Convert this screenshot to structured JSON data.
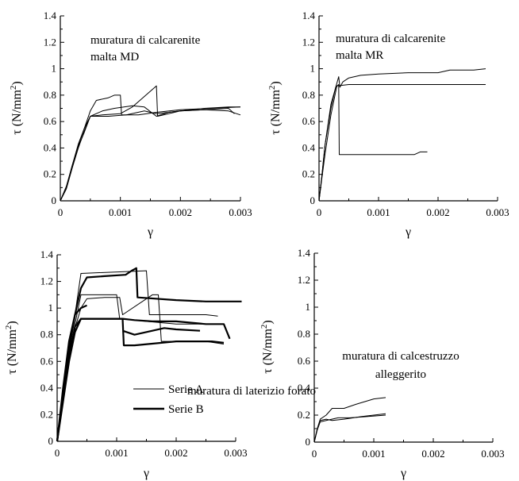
{
  "chart_data": [
    {
      "type": "line",
      "title": "",
      "annotation": [
        "muratura di calcarenite",
        "malta MD"
      ],
      "xlabel": "γ",
      "ylabel": "τ (N/mm",
      "ylabel_sup": "2",
      "ylabel_close": ")",
      "xlim": [
        0,
        0.003
      ],
      "ylim": [
        0,
        1.4
      ],
      "xticks": [
        0,
        0.001,
        0.002,
        0.003
      ],
      "xtick_labels": [
        "0",
        "0.001",
        "0.002",
        "0.003"
      ],
      "yticks": [
        0,
        0.2,
        0.4,
        0.6,
        0.8,
        1,
        1.2,
        1.4
      ],
      "ytick_labels": [
        "0",
        "0.2",
        "0.4",
        "0.6",
        "0.8",
        "1",
        "1.2",
        "1.4"
      ],
      "series": [
        {
          "weight": "thin",
          "points": [
            [
              0,
              0
            ],
            [
              0.0001,
              0.1
            ],
            [
              0.0002,
              0.27
            ],
            [
              0.0003,
              0.42
            ],
            [
              0.0004,
              0.55
            ],
            [
              0.0005,
              0.64
            ],
            [
              0.0008,
              0.64
            ],
            [
              0.0011,
              0.65
            ],
            [
              0.0014,
              0.68
            ],
            [
              0.0016,
              0.66
            ],
            [
              0.002,
              0.68
            ],
            [
              0.0024,
              0.69
            ],
            [
              0.0028,
              0.7
            ],
            [
              0.0029,
              0.66
            ]
          ]
        },
        {
          "weight": "thin",
          "points": [
            [
              0,
              0
            ],
            [
              0.0001,
              0.09
            ],
            [
              0.0002,
              0.25
            ],
            [
              0.0003,
              0.4
            ],
            [
              0.0004,
              0.53
            ],
            [
              0.0005,
              0.64
            ],
            [
              0.0007,
              0.68
            ],
            [
              0.0009,
              0.7
            ],
            [
              0.0012,
              0.72
            ],
            [
              0.0014,
              0.71
            ],
            [
              0.0016,
              0.64
            ],
            [
              0.0018,
              0.67
            ],
            [
              0.002,
              0.68
            ],
            [
              0.0024,
              0.69
            ],
            [
              0.0028,
              0.68
            ],
            [
              0.003,
              0.65
            ]
          ]
        },
        {
          "weight": "thin",
          "points": [
            [
              0,
              0
            ],
            [
              0.0001,
              0.1
            ],
            [
              0.0002,
              0.26
            ],
            [
              0.0003,
              0.41
            ],
            [
              0.0004,
              0.52
            ],
            [
              0.0005,
              0.64
            ],
            [
              0.0007,
              0.65
            ],
            [
              0.001,
              0.66
            ],
            [
              0.0012,
              0.71
            ],
            [
              0.0016,
              0.87
            ],
            [
              0.00162,
              0.64
            ],
            [
              0.002,
              0.68
            ],
            [
              0.0024,
              0.7
            ],
            [
              0.0028,
              0.71
            ],
            [
              0.003,
              0.71
            ]
          ]
        },
        {
          "weight": "thin",
          "points": [
            [
              0,
              0
            ],
            [
              0.0001,
              0.11
            ],
            [
              0.0002,
              0.27
            ],
            [
              0.0003,
              0.43
            ],
            [
              0.0004,
              0.55
            ],
            [
              0.0005,
              0.68
            ],
            [
              0.0006,
              0.76
            ],
            [
              0.0008,
              0.78
            ],
            [
              0.0009,
              0.8
            ],
            [
              0.001,
              0.8
            ],
            [
              0.00102,
              0.65
            ],
            [
              0.0013,
              0.65
            ],
            [
              0.0016,
              0.67
            ],
            [
              0.002,
              0.69
            ],
            [
              0.0025,
              0.7
            ],
            [
              0.003,
              0.71
            ]
          ]
        }
      ]
    },
    {
      "type": "line",
      "title": "",
      "annotation": [
        "muratura di calcarenite",
        "malta MR"
      ],
      "xlabel": "γ",
      "ylabel": "τ (N/mm",
      "ylabel_sup": "2",
      "ylabel_close": ")",
      "xlim": [
        0,
        0.003
      ],
      "ylim": [
        0,
        1.4
      ],
      "xticks": [
        0,
        0.001,
        0.002,
        0.003
      ],
      "xtick_labels": [
        "0",
        "0.001",
        "0.002",
        "0.003"
      ],
      "yticks": [
        0,
        0.2,
        0.4,
        0.6,
        0.8,
        1,
        1.2,
        1.4
      ],
      "ytick_labels": [
        "0",
        "0.2",
        "0.4",
        "0.6",
        "0.8",
        "1",
        "1.2",
        "1.4"
      ],
      "series": [
        {
          "weight": "thin",
          "points": [
            [
              0,
              0
            ],
            [
              5e-05,
              0.2
            ],
            [
              0.0001,
              0.42
            ],
            [
              0.0002,
              0.7
            ],
            [
              0.00028,
              0.86
            ],
            [
              0.00033,
              0.88
            ],
            [
              0.00034,
              0.35
            ],
            [
              0.0008,
              0.35
            ],
            [
              0.0016,
              0.35
            ],
            [
              0.0017,
              0.37
            ],
            [
              0.00182,
              0.37
            ]
          ]
        },
        {
          "weight": "thin",
          "points": [
            [
              0,
              0
            ],
            [
              5e-05,
              0.18
            ],
            [
              0.0001,
              0.35
            ],
            [
              0.0002,
              0.65
            ],
            [
              0.0003,
              0.87
            ],
            [
              0.0005,
              0.88
            ],
            [
              0.001,
              0.88
            ],
            [
              0.002,
              0.88
            ],
            [
              0.0028,
              0.88
            ]
          ]
        },
        {
          "weight": "thin",
          "points": [
            [
              0,
              0
            ],
            [
              5e-05,
              0.2
            ],
            [
              0.0001,
              0.42
            ],
            [
              0.0002,
              0.73
            ],
            [
              0.00033,
              0.94
            ],
            [
              0.00035,
              0.86
            ],
            [
              0.0004,
              0.9
            ],
            [
              0.0005,
              0.93
            ],
            [
              0.0007,
              0.95
            ],
            [
              0.001,
              0.96
            ],
            [
              0.0015,
              0.97
            ],
            [
              0.002,
              0.97
            ],
            [
              0.0022,
              0.99
            ],
            [
              0.0026,
              0.99
            ],
            [
              0.0028,
              1.0
            ]
          ]
        }
      ]
    },
    {
      "type": "line",
      "title": "",
      "annotation": [
        "muratura di laterizio forato"
      ],
      "legend": {
        "items": [
          {
            "name": "Serie A",
            "weight": "thin"
          },
          {
            "name": "Serie B",
            "weight": "thick"
          }
        ]
      },
      "xlabel": "γ",
      "ylabel": "τ (N/mm",
      "ylabel_sup": "2",
      "ylabel_close": ")",
      "xlim": [
        0,
        0.003
      ],
      "ylim": [
        0,
        1.4
      ],
      "xticks": [
        0,
        0.001,
        0.002,
        0.003
      ],
      "xtick_labels": [
        "0",
        "0.001",
        "0.002",
        "0.003"
      ],
      "yticks": [
        0,
        0.2,
        0.4,
        0.6,
        0.8,
        1,
        1.2,
        1.4
      ],
      "ytick_labels": [
        "0",
        "0.2",
        "0.4",
        "0.6",
        "0.8",
        "1",
        "1.2",
        "1.4"
      ],
      "series": [
        {
          "name": "Serie A",
          "weight": "thin",
          "points": [
            [
              0,
              0
            ],
            [
              0.0001,
              0.35
            ],
            [
              0.0002,
              0.68
            ],
            [
              0.0003,
              0.95
            ],
            [
              0.0004,
              1.26
            ],
            [
              0.0015,
              1.28
            ],
            [
              0.00155,
              0.95
            ],
            [
              0.002,
              0.95
            ],
            [
              0.0025,
              0.95
            ],
            [
              0.0027,
              0.94
            ]
          ]
        },
        {
          "name": "Serie A",
          "weight": "thin",
          "points": [
            [
              0,
              0
            ],
            [
              0.0001,
              0.32
            ],
            [
              0.0002,
              0.62
            ],
            [
              0.0003,
              0.88
            ],
            [
              0.0004,
              1.1
            ],
            [
              0.001,
              1.1
            ],
            [
              0.00105,
              0.92
            ],
            [
              0.0015,
              0.9
            ],
            [
              0.002,
              0.88
            ],
            [
              0.0027,
              0.88
            ]
          ]
        },
        {
          "name": "Serie A",
          "weight": "thin",
          "points": [
            [
              0,
              0
            ],
            [
              0.0001,
              0.3
            ],
            [
              0.0002,
              0.6
            ],
            [
              0.0003,
              0.85
            ],
            [
              0.0004,
              1.0
            ],
            [
              0.0005,
              1.07
            ],
            [
              0.0008,
              1.08
            ],
            [
              0.00105,
              1.08
            ],
            [
              0.0011,
              0.95
            ],
            [
              0.0016,
              1.1
            ],
            [
              0.0017,
              1.1
            ],
            [
              0.00175,
              0.75
            ],
            [
              0.0025,
              0.75
            ],
            [
              0.0028,
              0.73
            ]
          ]
        },
        {
          "name": "Serie B",
          "weight": "thick",
          "points": [
            [
              0,
              0
            ],
            [
              0.0001,
              0.35
            ],
            [
              0.0002,
              0.68
            ],
            [
              0.0003,
              0.95
            ],
            [
              0.0004,
              1.15
            ],
            [
              0.0005,
              1.23
            ],
            [
              0.0008,
              1.24
            ],
            [
              0.00115,
              1.25
            ],
            [
              0.00125,
              1.28
            ],
            [
              0.00133,
              1.3
            ],
            [
              0.00135,
              1.08
            ],
            [
              0.002,
              1.06
            ],
            [
              0.0025,
              1.05
            ],
            [
              0.0031,
              1.05
            ]
          ]
        },
        {
          "name": "Serie B",
          "weight": "thick",
          "points": [
            [
              0,
              0
            ],
            [
              0.0001,
              0.3
            ],
            [
              0.0002,
              0.6
            ],
            [
              0.0003,
              0.82
            ],
            [
              0.0004,
              0.92
            ],
            [
              0.0006,
              0.92
            ],
            [
              0.0009,
              0.92
            ],
            [
              0.0011,
              0.92
            ],
            [
              0.00112,
              0.72
            ],
            [
              0.0013,
              0.72
            ],
            [
              0.002,
              0.75
            ],
            [
              0.0026,
              0.75
            ],
            [
              0.0028,
              0.74
            ]
          ]
        },
        {
          "name": "Serie B",
          "weight": "thick",
          "points": [
            [
              0,
              0
            ],
            [
              0.0001,
              0.33
            ],
            [
              0.0002,
              0.63
            ],
            [
              0.0003,
              0.86
            ],
            [
              0.0004,
              0.92
            ],
            [
              0.0008,
              0.92
            ],
            [
              0.0011,
              0.92
            ],
            [
              0.0013,
              0.91
            ],
            [
              0.0016,
              0.9
            ],
            [
              0.002,
              0.9
            ],
            [
              0.0025,
              0.88
            ],
            [
              0.0028,
              0.88
            ],
            [
              0.0029,
              0.77
            ]
          ]
        },
        {
          "name": "Serie B",
          "weight": "thick",
          "points": [
            [
              0,
              0
            ],
            [
              0.0001,
              0.4
            ],
            [
              0.0002,
              0.75
            ],
            [
              0.0003,
              0.95
            ],
            [
              0.0004,
              1.0
            ],
            [
              0.0005,
              1.02
            ]
          ]
        },
        {
          "name": "Serie B",
          "weight": "thick",
          "points": [
            [
              0.0011,
              0.83
            ],
            [
              0.0013,
              0.8
            ],
            [
              0.0016,
              0.83
            ],
            [
              0.0018,
              0.85
            ],
            [
              0.002,
              0.84
            ],
            [
              0.0024,
              0.83
            ]
          ]
        }
      ]
    },
    {
      "type": "line",
      "title": "",
      "annotation": [
        "muratura di calcestruzzo",
        "alleggerito"
      ],
      "xlabel": "γ",
      "ylabel": "τ (N/mm",
      "ylabel_sup": "2",
      "ylabel_close": ")",
      "xlim": [
        0,
        0.003
      ],
      "ylim": [
        0,
        1.4
      ],
      "xticks": [
        0,
        0.001,
        0.002,
        0.003
      ],
      "xtick_labels": [
        "0",
        "0.001",
        "0.002",
        "0.003"
      ],
      "yticks": [
        0,
        0.2,
        0.4,
        0.6,
        0.8,
        1,
        1.2,
        1.4
      ],
      "ytick_labels": [
        "0",
        "0.2",
        "0.4",
        "0.6",
        "0.8",
        "1",
        "1.2",
        "1.4"
      ],
      "series": [
        {
          "weight": "thin",
          "points": [
            [
              0,
              0
            ],
            [
              5e-05,
              0.1
            ],
            [
              0.0001,
              0.17
            ],
            [
              0.0002,
              0.2
            ],
            [
              0.0003,
              0.25
            ],
            [
              0.0005,
              0.25
            ],
            [
              0.0007,
              0.28
            ],
            [
              0.001,
              0.32
            ],
            [
              0.0012,
              0.33
            ]
          ]
        },
        {
          "weight": "thin",
          "points": [
            [
              0,
              0
            ],
            [
              5e-05,
              0.1
            ],
            [
              0.0001,
              0.16
            ],
            [
              0.0002,
              0.17
            ],
            [
              0.0003,
              0.16
            ],
            [
              0.0005,
              0.17
            ],
            [
              0.0008,
              0.19
            ],
            [
              0.001,
              0.2
            ],
            [
              0.0012,
              0.21
            ]
          ]
        },
        {
          "weight": "thin",
          "points": [
            [
              0,
              0
            ],
            [
              5e-05,
              0.09
            ],
            [
              0.0001,
              0.15
            ],
            [
              0.0002,
              0.16
            ],
            [
              0.0004,
              0.18
            ],
            [
              0.0006,
              0.18
            ],
            [
              0.0009,
              0.19
            ],
            [
              0.0012,
              0.2
            ]
          ]
        }
      ]
    }
  ]
}
